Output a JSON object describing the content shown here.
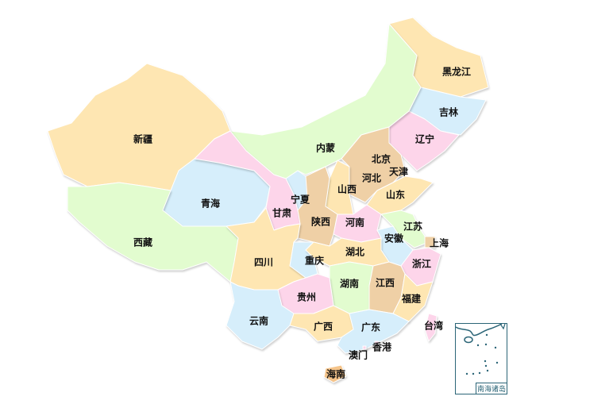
{
  "map": {
    "colors": {
      "yellow": "#FEE6B2",
      "green": "#E2FCCF",
      "pink": "#FDD5EA",
      "blue": "#D6EEFB",
      "tan": "#EFD0A6",
      "orange": "#F5C48A"
    },
    "provinces": [
      {
        "id": "heilongjiang",
        "name": "黑龙江",
        "color": "yellow"
      },
      {
        "id": "jilin",
        "name": "吉林",
        "color": "blue"
      },
      {
        "id": "liaoning",
        "name": "辽宁",
        "color": "pink"
      },
      {
        "id": "neimeng",
        "name": "内蒙",
        "color": "green"
      },
      {
        "id": "xinjiang",
        "name": "新疆",
        "color": "yellow"
      },
      {
        "id": "beijing",
        "name": "北京",
        "color": "blue"
      },
      {
        "id": "tianjin",
        "name": "天津",
        "color": "yellow"
      },
      {
        "id": "hebei",
        "name": "河北",
        "color": "tan"
      },
      {
        "id": "shanxi",
        "name": "山西",
        "color": "yellow"
      },
      {
        "id": "shandong",
        "name": "山东",
        "color": "yellow"
      },
      {
        "id": "ningxia",
        "name": "宁夏",
        "color": "blue"
      },
      {
        "id": "qinghai",
        "name": "青海",
        "color": "blue"
      },
      {
        "id": "gansu",
        "name": "甘肃",
        "color": "pink"
      },
      {
        "id": "shaanxi",
        "name": "陕西",
        "color": "tan"
      },
      {
        "id": "henan",
        "name": "河南",
        "color": "pink"
      },
      {
        "id": "jiangsu",
        "name": "江苏",
        "color": "green"
      },
      {
        "id": "anhui",
        "name": "安徽",
        "color": "blue"
      },
      {
        "id": "shanghai",
        "name": "上海",
        "color": "tan"
      },
      {
        "id": "xizang",
        "name": "西藏",
        "color": "green"
      },
      {
        "id": "sichuan",
        "name": "四川",
        "color": "yellow"
      },
      {
        "id": "chongqing",
        "name": "重庆",
        "color": "blue"
      },
      {
        "id": "hubei",
        "name": "湖北",
        "color": "yellow"
      },
      {
        "id": "zhejiang",
        "name": "浙江",
        "color": "pink"
      },
      {
        "id": "hunan",
        "name": "湖南",
        "color": "green"
      },
      {
        "id": "jiangxi",
        "name": "江西",
        "color": "tan"
      },
      {
        "id": "guizhou",
        "name": "贵州",
        "color": "pink"
      },
      {
        "id": "fujian",
        "name": "福建",
        "color": "yellow"
      },
      {
        "id": "yunnan",
        "name": "云南",
        "color": "blue"
      },
      {
        "id": "guangxi",
        "name": "广西",
        "color": "yellow"
      },
      {
        "id": "guangdong",
        "name": "广东",
        "color": "blue"
      },
      {
        "id": "taiwan",
        "name": "台湾",
        "color": "pink"
      },
      {
        "id": "xianggang",
        "name": "香港",
        "color": "pink"
      },
      {
        "id": "aomen",
        "name": "澳门",
        "color": "pink"
      },
      {
        "id": "hainan",
        "name": "海南",
        "color": "orange"
      }
    ],
    "inset_label": "南海诸岛"
  }
}
